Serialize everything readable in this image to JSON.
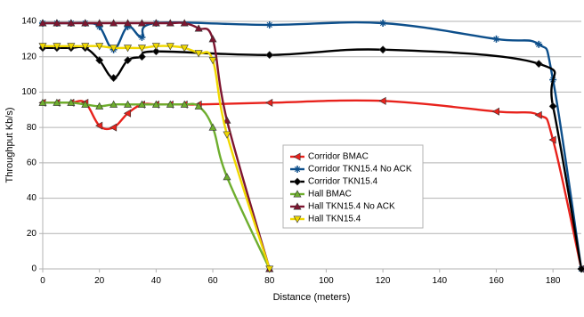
{
  "chart_data": {
    "type": "line",
    "title": "",
    "xlabel": "Distance (meters)",
    "ylabel": "Throughput Kb/s)",
    "xlim": [
      0,
      190
    ],
    "ylim": [
      0,
      140
    ],
    "xticks": [
      0,
      20,
      40,
      60,
      80,
      100,
      120,
      140,
      160,
      180
    ],
    "yticks": [
      0,
      20,
      40,
      60,
      80,
      100,
      120,
      140
    ],
    "xtick_labels": [
      "0",
      "20",
      "40",
      "60",
      "80",
      "100",
      "120",
      "140",
      "160",
      "180"
    ],
    "ytick_labels": [
      "0",
      "20",
      "40",
      "60",
      "80",
      "100",
      "120",
      "140"
    ],
    "grid": "horizontal",
    "legend_position": "center-right",
    "series": [
      {
        "name": "Corridor BMAC",
        "color": "#e8221c",
        "marker": "triangle-left",
        "x": [
          0,
          5,
          10,
          15,
          20,
          25,
          30,
          35,
          40,
          45,
          50,
          55,
          80,
          120,
          160,
          175,
          180,
          190
        ],
        "y": [
          94,
          94,
          94,
          94,
          81,
          80,
          88,
          93,
          93,
          93,
          93,
          93,
          94,
          95,
          89,
          87,
          73,
          0
        ]
      },
      {
        "name": "Corridor TKN15.4 No ACK",
        "color": "#0d4f8b",
        "marker": "star",
        "x": [
          0,
          5,
          10,
          15,
          20,
          25,
          30,
          35,
          40,
          80,
          120,
          160,
          175,
          180,
          190
        ],
        "y": [
          139,
          139,
          139,
          139,
          137,
          124,
          137,
          131,
          139,
          138,
          139,
          130,
          127,
          107,
          0
        ]
      },
      {
        "name": "Corridor TKN15.4",
        "color": "#000000",
        "marker": "diamond",
        "x": [
          0,
          5,
          10,
          15,
          20,
          25,
          30,
          35,
          40,
          80,
          120,
          175,
          180,
          190
        ],
        "y": [
          125,
          125,
          125,
          125,
          118,
          108,
          118,
          120,
          123,
          121,
          124,
          116,
          92,
          0
        ]
      },
      {
        "name": "Hall BMAC",
        "color": "#6eae2e",
        "marker": "triangle-up",
        "x": [
          0,
          5,
          10,
          15,
          20,
          25,
          30,
          35,
          40,
          45,
          50,
          55,
          60,
          65,
          80
        ],
        "y": [
          94,
          94,
          94,
          93,
          92,
          93,
          93,
          93,
          93,
          93,
          93,
          92,
          80,
          52,
          0
        ]
      },
      {
        "name": "Hall TKN15.4 No ACK",
        "color": "#7d1530",
        "marker": "triangle-up",
        "x": [
          0,
          5,
          10,
          15,
          20,
          25,
          30,
          35,
          40,
          45,
          50,
          55,
          60,
          65,
          80
        ],
        "y": [
          139,
          139,
          139,
          139,
          139,
          139,
          139,
          139,
          139,
          139,
          139,
          136,
          130,
          84,
          0
        ]
      },
      {
        "name": "Hall TKN15.4",
        "color": "#f0d800",
        "marker": "triangle-down",
        "x": [
          0,
          5,
          10,
          15,
          20,
          25,
          30,
          35,
          40,
          45,
          50,
          55,
          60,
          65,
          80
        ],
        "y": [
          126,
          126,
          126,
          126,
          126,
          125,
          125,
          125,
          126,
          126,
          125,
          122,
          118,
          76,
          0
        ]
      }
    ]
  }
}
